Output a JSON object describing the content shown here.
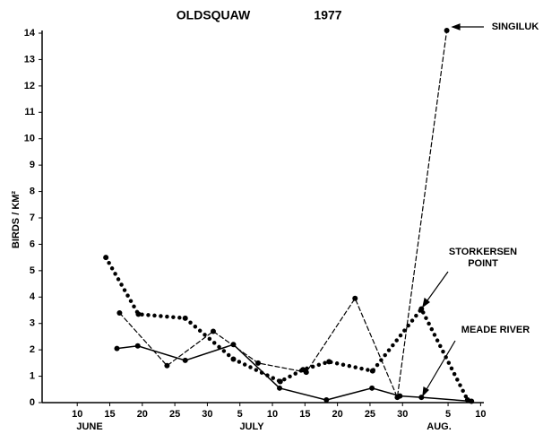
{
  "chart_data": {
    "type": "line",
    "title": "OLDSQUAW",
    "subtitle": "1977",
    "ylabel": "BIRDS / KM²",
    "xlim": [
      4.6,
      72.5
    ],
    "xticks": [
      {
        "value": 10,
        "label": "10"
      },
      {
        "value": 15,
        "label": "15"
      },
      {
        "value": 20,
        "label": "20"
      },
      {
        "value": 25,
        "label": "25"
      },
      {
        "value": 30,
        "label": "30"
      },
      {
        "value": 35,
        "label": "5"
      },
      {
        "value": 40,
        "label": "10"
      },
      {
        "value": 45,
        "label": "15"
      },
      {
        "value": 50,
        "label": "20"
      },
      {
        "value": 55,
        "label": "25"
      },
      {
        "value": 60,
        "label": "30"
      },
      {
        "value": 67,
        "label": "5"
      },
      {
        "value": 72,
        "label": "10"
      }
    ],
    "month_labels": [
      "JUNE",
      "JULY",
      "AUG."
    ],
    "ylim": [
      0,
      14
    ],
    "yticks": [
      0,
      1,
      2,
      3,
      4,
      5,
      6,
      7,
      8,
      9,
      10,
      11,
      12,
      13,
      14
    ],
    "series": [
      {
        "name": "MEADE RIVER",
        "color": "#000000",
        "style": "solid",
        "x": [
          16.1,
          19.3,
          26.6,
          34,
          41.1,
          48.3,
          55.3,
          59.6,
          62.9,
          70.6
        ],
        "values": [
          2.05,
          2.15,
          1.6,
          2.2,
          0.55,
          0.1,
          0.55,
          0.25,
          0.2,
          0.05
        ]
      },
      {
        "name": "SINGILUK",
        "color": "#000000",
        "style": "dashed",
        "x": [
          16.5,
          23.8,
          30.9,
          37.8,
          45.2,
          52.7,
          59.2,
          66.8
        ],
        "values": [
          3.4,
          1.4,
          2.7,
          1.5,
          1.15,
          3.95,
          0.2,
          14.1
        ]
      },
      {
        "name": "STORKERSEN POINT",
        "color": "#000000",
        "style": "dotted",
        "x": [
          14.4,
          19.4,
          26.6,
          34,
          41.2,
          44.7,
          48.7,
          55.4,
          62.9,
          70
        ],
        "values": [
          5.5,
          3.35,
          3.2,
          1.65,
          0.8,
          1.25,
          1.55,
          1.2,
          3.55,
          0.1
        ]
      }
    ]
  }
}
